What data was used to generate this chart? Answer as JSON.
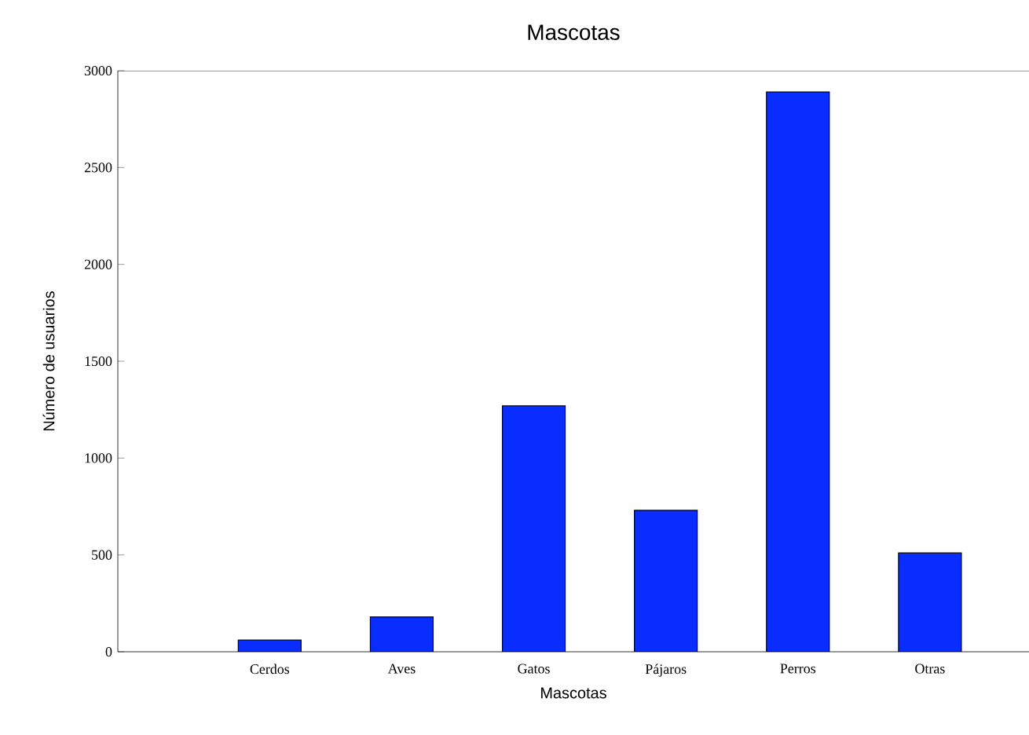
{
  "chart_data": {
    "type": "bar",
    "title": "Mascotas",
    "xlabel": "Mascotas",
    "ylabel": "Número de usuarios",
    "categories": [
      "Cerdos",
      "Aves",
      "Gatos",
      "Pájaros",
      "Perros",
      "Otras"
    ],
    "values": [
      60,
      180,
      1270,
      730,
      2890,
      510
    ],
    "color": "#0a2dff",
    "ylim": [
      0,
      3000
    ],
    "yticks": [
      0,
      500,
      1000,
      1500,
      2000,
      2500,
      3000
    ],
    "grid": false
  }
}
